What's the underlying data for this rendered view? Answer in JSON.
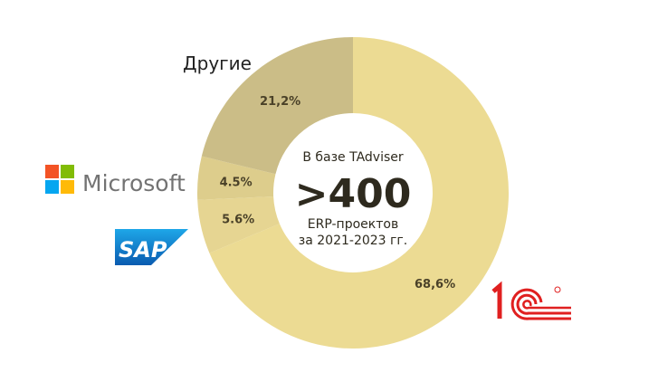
{
  "chart_data": {
    "type": "pie",
    "donut": true,
    "start": "top, clockwise",
    "slices": [
      {
        "name": "1С",
        "value": 68.6,
        "label": "68,6%",
        "color": "#ecdb93",
        "logo": "1c-logo"
      },
      {
        "name": "SAP",
        "value": 5.6,
        "label": "5.6%",
        "color": "#e6d592",
        "logo": "sap-logo"
      },
      {
        "name": "Microsoft",
        "value": 4.5,
        "label": "4.5%",
        "color": "#ddcd8c",
        "logo": "microsoft-logo"
      },
      {
        "name": "Другие",
        "value": 21.2,
        "label": "21,2%",
        "color": "#cbbd87"
      }
    ],
    "center": {
      "line1": "В базе TAdviser",
      "big": ">400",
      "line2": "ERP-проектов",
      "line3": "за 2021-2023 гг."
    }
  },
  "logos": {
    "microsoft": "Microsoft",
    "sap": "SAP",
    "onec": "1С"
  }
}
